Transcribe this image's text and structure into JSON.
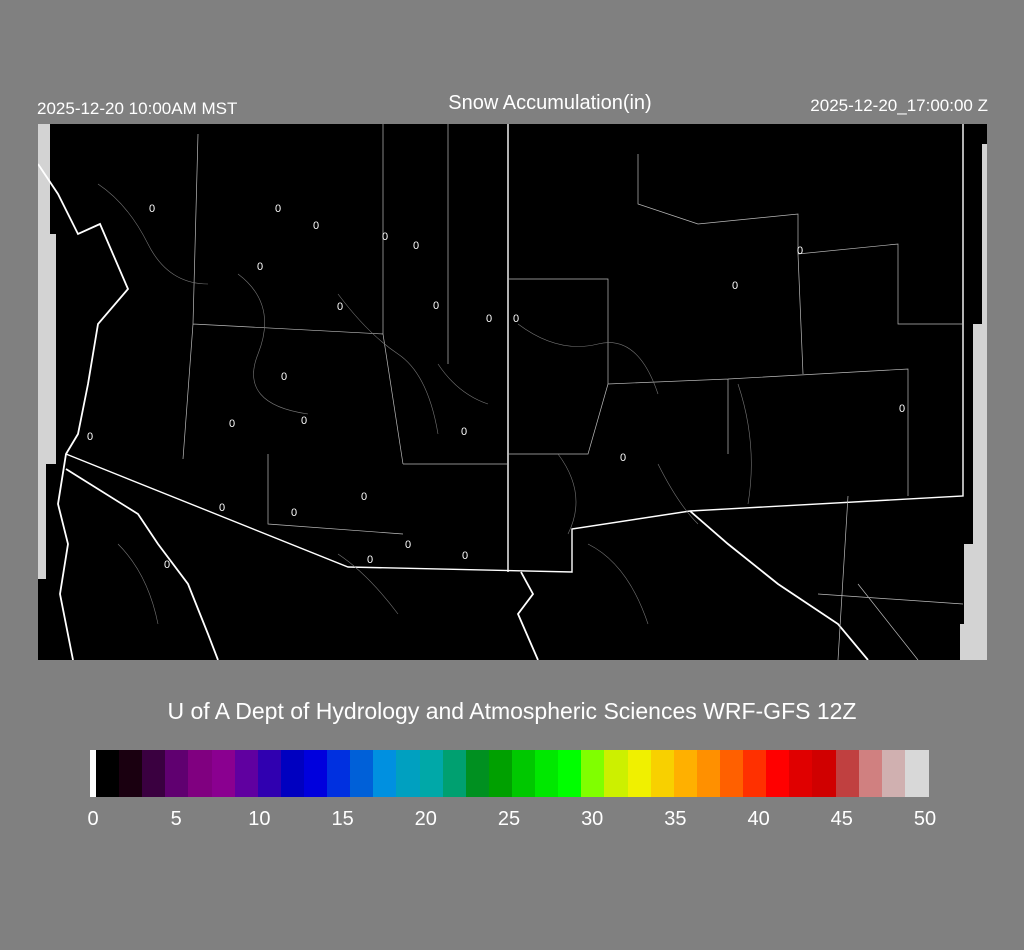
{
  "header": {
    "local_time": "2025-12-20 10:00AM MST",
    "title": "Snow Accumulation(in)",
    "utc_time": "2025-12-20_17:00:00 Z"
  },
  "map": {
    "background": "#000000",
    "nodata_color": "#d3d3d3",
    "border_color": "#ffffff",
    "point_labels": [
      "0",
      "0",
      "0",
      "0",
      "0",
      "0",
      "0",
      "0",
      "0",
      "0",
      "0",
      "0",
      "0",
      "0",
      "0",
      "0",
      "0",
      "0",
      "0",
      "0",
      "0",
      "0",
      "0",
      "0",
      "0",
      "0",
      "0"
    ]
  },
  "credit": "U of A Dept of Hydrology and Atmospheric Sciences WRF-GFS 12Z",
  "colorbar": {
    "colors": [
      "#ffffff",
      "#000000",
      "#1a0010",
      "#3a0040",
      "#600070",
      "#800080",
      "#8a0090",
      "#6000a0",
      "#3000b0",
      "#0000c0",
      "#0000dd",
      "#0030e0",
      "#0060d8",
      "#0090e0",
      "#00a0c0",
      "#00a8a8",
      "#00a070",
      "#009020",
      "#00a000",
      "#00c800",
      "#00e800",
      "#00ff00",
      "#80ff00",
      "#ccf000",
      "#f0f000",
      "#f8d000",
      "#ffb000",
      "#ff9000",
      "#ff6000",
      "#ff3000",
      "#ff0000",
      "#e00000",
      "#d00000",
      "#c04040",
      "#d08080",
      "#d0b0b0",
      "#d8d8d8"
    ],
    "tick_labels": [
      "0",
      "5",
      "10",
      "15",
      "20",
      "25",
      "30",
      "35",
      "40",
      "45",
      "50"
    ],
    "range": [
      0,
      50
    ]
  }
}
